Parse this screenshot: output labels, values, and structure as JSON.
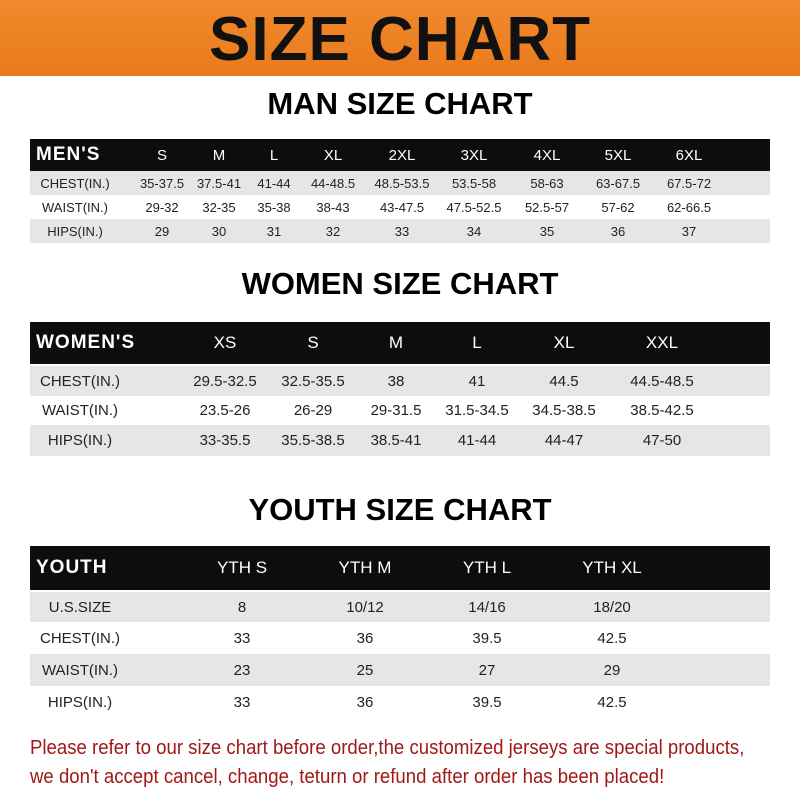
{
  "header": {
    "title": "SIZE CHART",
    "background_color": "#ee8226"
  },
  "tables": [
    {
      "title": "MAN SIZE CHART",
      "columns": [
        "MEN'S",
        "S",
        "M",
        "L",
        "XL",
        "2XL",
        "3XL",
        "4XL",
        "5XL",
        "6XL"
      ],
      "rows": [
        [
          "CHEST(IN.)",
          "35-37.5",
          "37.5-41",
          "41-44",
          "44-48.5",
          "48.5-53.5",
          "53.5-58",
          "58-63",
          "63-67.5",
          "67.5-72"
        ],
        [
          "WAIST(IN.)",
          "29-32",
          "32-35",
          "35-38",
          "38-43",
          "43-47.5",
          "47.5-52.5",
          "52.5-57",
          "57-62",
          "62-66.5"
        ],
        [
          "HIPS(IN.)",
          "29",
          "30",
          "31",
          "32",
          "33",
          "34",
          "35",
          "36",
          "37"
        ]
      ]
    },
    {
      "title": "WOMEN SIZE CHART",
      "columns": [
        "WOMEN'S",
        "XS",
        "S",
        "M",
        "L",
        "XL",
        "XXL"
      ],
      "rows": [
        [
          "CHEST(IN.)",
          "29.5-32.5",
          "32.5-35.5",
          "38",
          "41",
          "44.5",
          "44.5-48.5"
        ],
        [
          "WAIST(IN.)",
          "23.5-26",
          "26-29",
          "29-31.5",
          "31.5-34.5",
          "34.5-38.5",
          "38.5-42.5"
        ],
        [
          "HIPS(IN.)",
          "33-35.5",
          "35.5-38.5",
          "38.5-41",
          "41-44",
          "44-47",
          "47-50"
        ]
      ]
    },
    {
      "title": "YOUTH SIZE CHART",
      "columns": [
        "YOUTH",
        "YTH S",
        "YTH M",
        "YTH L",
        "YTH XL"
      ],
      "rows": [
        [
          "U.S.SIZE",
          "8",
          "10/12",
          "14/16",
          "18/20"
        ],
        [
          "CHEST(IN.)",
          "33",
          "36",
          "39.5",
          "42.5"
        ],
        [
          "WAIST(IN.)",
          "23",
          "25",
          "27",
          "29"
        ],
        [
          "HIPS(IN.)",
          "33",
          "36",
          "39.5",
          "42.5"
        ]
      ]
    }
  ],
  "note": {
    "line1": "Please refer to our size chart before order,the customized jerseys are special products,",
    "line2": "we don't accept cancel, change, teturn or refund after order has been placed!",
    "color": "#a01818"
  }
}
